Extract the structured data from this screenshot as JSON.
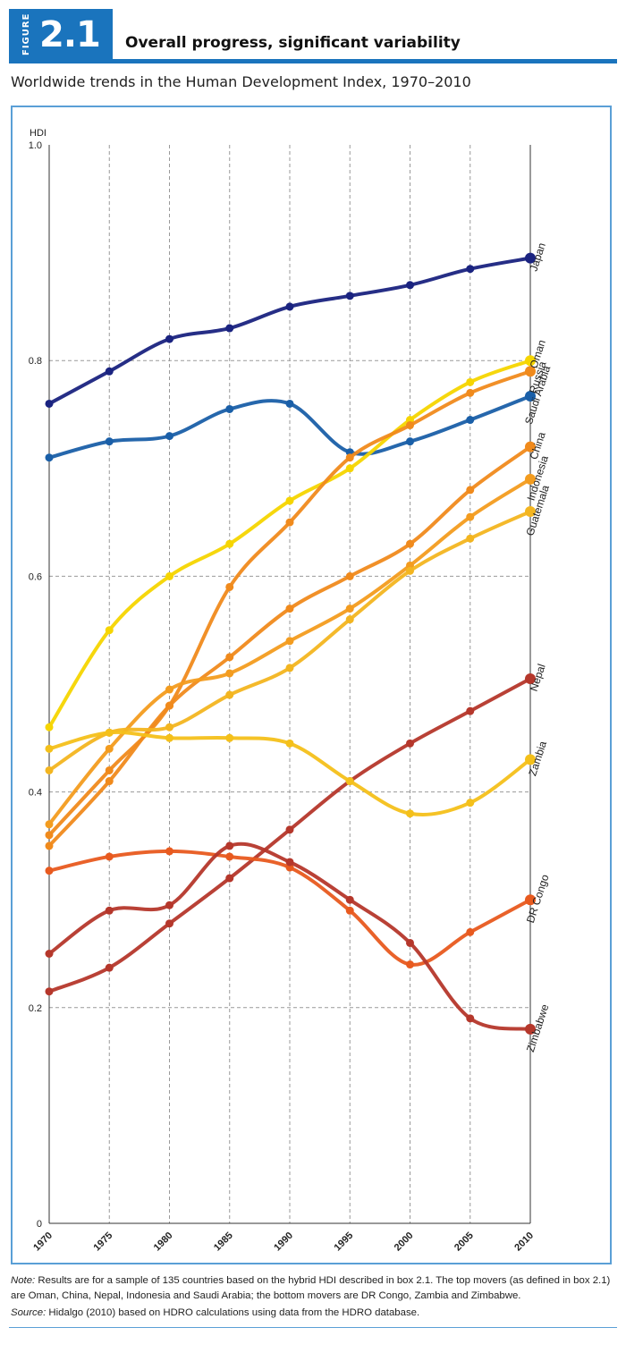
{
  "figure": {
    "word": "FIGURE",
    "number": "2.1",
    "title": "Overall progress, significant variability",
    "subtitle": "Worldwide trends in the Human Development Index, 1970–2010"
  },
  "note": {
    "label": "Note:",
    "text": " Results are for a sample of 135 countries based on the hybrid HDI described in box 2.1. The top movers (as defined in box 2.1) are Oman, China, Nepal, Indonesia and Saudi Arabia; the bottom movers are DR Congo, Zambia and Zimbabwe."
  },
  "source": {
    "label": "Source:",
    "text": " Hidalgo (2010) based on HDRO calculations using data from the HDRO database."
  },
  "chart_data": {
    "type": "line",
    "title": "Worldwide trends in the Human Development Index, 1970–2010",
    "ylabel": "HDI",
    "xlabel": "",
    "ylim": [
      0,
      1
    ],
    "yticks": [
      "0",
      "0.2",
      "0.4",
      "0.6",
      "0.8",
      "1.0"
    ],
    "x": [
      1970,
      1975,
      1980,
      1985,
      1990,
      1995,
      2000,
      2005,
      2010
    ],
    "xticks": [
      "1970",
      "1975",
      "1980",
      "1985",
      "1990",
      "1995",
      "2000",
      "2005",
      "2010"
    ],
    "grid": true,
    "series": [
      {
        "name": "Japan",
        "color": "#1a2380",
        "values": [
          0.76,
          0.79,
          0.82,
          0.83,
          0.85,
          0.86,
          0.87,
          0.885,
          0.895
        ]
      },
      {
        "name": "Saudi Arabia",
        "color": "#1a5fa8",
        "values": [
          0.71,
          0.725,
          0.73,
          0.755,
          0.76,
          0.715,
          0.725,
          0.745,
          0.767
        ]
      },
      {
        "name": "Oman",
        "color": "#f6d500",
        "values": [
          0.46,
          0.55,
          0.6,
          0.63,
          0.67,
          0.7,
          0.745,
          0.78,
          0.8
        ]
      },
      {
        "name": "Russia",
        "color": "#f08a1c",
        "values": [
          0.36,
          0.42,
          0.48,
          0.59,
          0.65,
          0.71,
          0.74,
          0.77,
          0.79
        ]
      },
      {
        "name": "China",
        "color": "#f08a1c",
        "values": [
          0.35,
          0.41,
          0.48,
          0.525,
          0.57,
          0.6,
          0.63,
          0.68,
          0.72
        ]
      },
      {
        "name": "Indonesia",
        "color": "#f39c1f",
        "values": [
          0.37,
          0.44,
          0.495,
          0.51,
          0.54,
          0.57,
          0.61,
          0.655,
          0.69
        ]
      },
      {
        "name": "Guatemala",
        "color": "#f3b520",
        "values": [
          0.42,
          0.455,
          0.46,
          0.49,
          0.515,
          0.56,
          0.605,
          0.635,
          0.66
        ]
      },
      {
        "name": "Nepal",
        "color": "#b5372b",
        "values": [
          0.215,
          0.237,
          0.278,
          0.32,
          0.365,
          0.41,
          0.445,
          0.475,
          0.505
        ]
      },
      {
        "name": "Zambia",
        "color": "#f4c01a",
        "values": [
          0.44,
          0.455,
          0.45,
          0.45,
          0.445,
          0.41,
          0.38,
          0.39,
          0.43
        ]
      },
      {
        "name": "DR Congo",
        "color": "#e85a1f",
        "values": [
          0.327,
          0.34,
          0.345,
          0.34,
          0.33,
          0.29,
          0.24,
          0.27,
          0.3
        ]
      },
      {
        "name": "Zimbabwe",
        "color": "#b5372b",
        "values": [
          0.25,
          0.29,
          0.295,
          0.35,
          0.335,
          0.3,
          0.26,
          0.19,
          0.18
        ]
      }
    ]
  }
}
